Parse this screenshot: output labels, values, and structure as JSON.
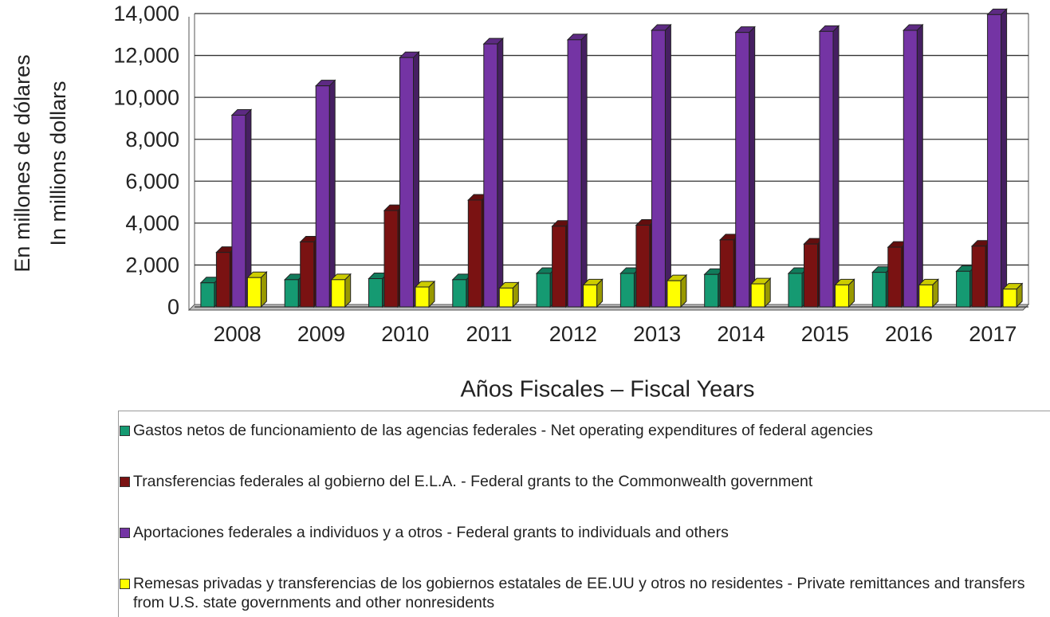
{
  "chart_data": {
    "type": "bar3d",
    "y_axis_label": [
      "En millones de dólares",
      "In millions dollars"
    ],
    "x_axis_label": "Años Fiscales – Fiscal Years",
    "categories": [
      "2008",
      "2009",
      "2010",
      "2011",
      "2012",
      "2013",
      "2014",
      "2015",
      "2016",
      "2017"
    ],
    "series": [
      {
        "name": "Gastos netos de funcionamiento de las agencias federales - Net operating expenditures of federal agencies",
        "color": "#159a72",
        "values": [
          1150,
          1300,
          1350,
          1300,
          1600,
          1600,
          1550,
          1600,
          1650,
          1700
        ]
      },
      {
        "name": "Transferencias federales al gobierno del E.L.A. - Federal grants to the Commonwealth government",
        "color": "#7a1212",
        "values": [
          2600,
          3100,
          4600,
          5100,
          3850,
          3900,
          3200,
          3000,
          2850,
          2900
        ]
      },
      {
        "name": "Aportaciones federales a individuos y a otros - Federal grants to individuals and others",
        "color": "#7434a4",
        "values": [
          9150,
          10550,
          11900,
          12550,
          12750,
          13200,
          13100,
          13150,
          13200,
          13950
        ]
      },
      {
        "name": "Remesas privadas y transferencias de los gobiernos estatales de EE.UU y otros no residentes - Private remittances and transfers from U.S. state governments and other nonresidents",
        "color": "#ffff00",
        "values": [
          1400,
          1300,
          950,
          900,
          1050,
          1250,
          1100,
          1050,
          1050,
          850
        ]
      }
    ],
    "ylim": [
      0,
      14000
    ],
    "yticks": [
      0,
      {
        "value": 2000,
        "label": "2,000"
      },
      {
        "value": 4000,
        "label": "4,000"
      },
      {
        "value": 6000,
        "label": "6,000"
      },
      {
        "value": 8000,
        "label": "8,000"
      },
      {
        "value": 10000,
        "label": "10,000"
      },
      {
        "value": 12000,
        "label": "12,000"
      },
      {
        "value": 14000,
        "label": "14,000"
      }
    ],
    "grid": true
  }
}
